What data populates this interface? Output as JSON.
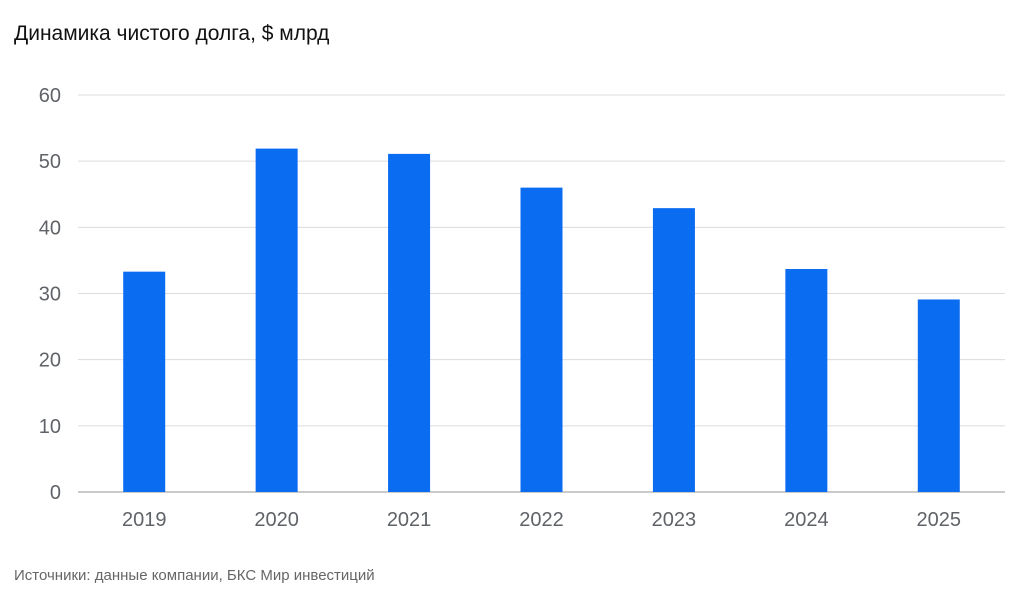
{
  "chart_data": {
    "type": "bar",
    "title": "Динамика чистого долга, $ млрд",
    "xlabel": "",
    "ylabel": "",
    "categories": [
      "2019",
      "2020",
      "2021",
      "2022",
      "2023",
      "2024",
      "2025"
    ],
    "values": [
      33.3,
      51.9,
      51.1,
      46.0,
      42.9,
      33.7,
      29.1
    ],
    "ylim": [
      0,
      60
    ],
    "yticks": [
      0,
      10,
      20,
      30,
      40,
      50,
      60
    ],
    "grid": true,
    "legend": "none",
    "bar_color": "#0a6cf0",
    "source": "Источники: данные компании, БКС Мир инвестиций"
  }
}
